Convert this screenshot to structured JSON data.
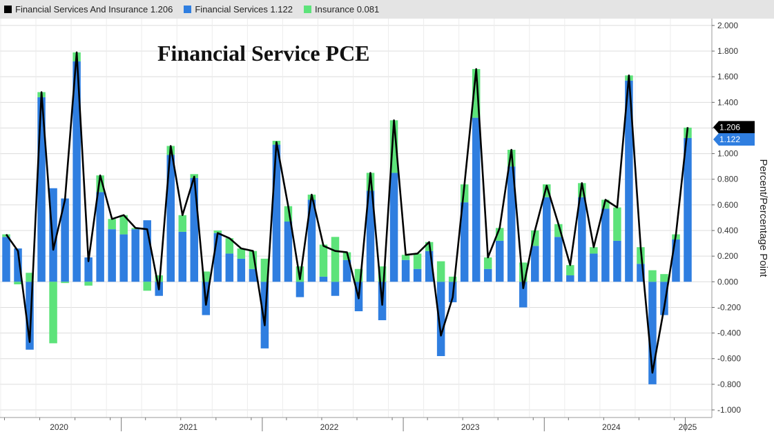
{
  "legend": [
    {
      "label": "Financial Services And Insurance",
      "value": "1.206",
      "color": "#000000"
    },
    {
      "label": "Financial Services",
      "value": "1.122",
      "color": "#2f7ee0"
    },
    {
      "label": "Insurance",
      "value": "0.081",
      "color": "#5de37a"
    }
  ],
  "chart_data": {
    "type": "bar",
    "title": "Financial Service PCE",
    "ylabel": "Percent/Percentage Point",
    "xlabel": "",
    "ylim": [
      -1.0,
      2.0
    ],
    "yticks": [
      2.0,
      1.8,
      1.6,
      1.4,
      1.2,
      1.0,
      0.8,
      0.6,
      0.4,
      0.2,
      0.0,
      -0.2,
      -0.4,
      -0.6,
      -0.8,
      -1.0
    ],
    "ytick_labels": [
      "2.000",
      "1.800",
      "1.600",
      "1.400",
      "1.200",
      "1.000",
      "0.800",
      "0.600",
      "0.400",
      "0.200",
      "0.000",
      "-0.200",
      "-0.400",
      "-0.600",
      "-0.800",
      "-1.000"
    ],
    "year_labels": [
      "2020",
      "2021",
      "2022",
      "2023",
      "2024",
      "2025"
    ],
    "stacked": true,
    "grid": true,
    "legend_position": "top",
    "last_value_callouts": [
      {
        "value": "1.206",
        "color": "#000000"
      },
      {
        "value": "1.122",
        "color": "#2f7ee0"
      }
    ],
    "series": [
      {
        "name": "Financial Services",
        "kind": "bar",
        "color": "#2f7ee0",
        "values": [
          0.35,
          0.26,
          -0.53,
          1.44,
          0.73,
          0.65,
          1.72,
          0.19,
          0.7,
          0.41,
          0.37,
          0.41,
          0.48,
          -0.11,
          0.99,
          0.39,
          0.81,
          -0.26,
          0.38,
          0.22,
          0.18,
          0.1,
          -0.52,
          1.07,
          0.47,
          -0.12,
          0.64,
          0.04,
          -0.11,
          0.17,
          -0.23,
          0.71,
          -0.3,
          0.85,
          0.17,
          0.1,
          0.24,
          -0.58,
          -0.16,
          0.62,
          1.28,
          0.1,
          0.32,
          0.9,
          -0.2,
          0.28,
          0.66,
          0.35,
          0.05,
          0.66,
          0.22,
          0.57,
          0.32,
          1.57,
          0.14,
          -0.8,
          -0.26,
          0.33,
          1.122
        ]
      },
      {
        "name": "Insurance",
        "kind": "bar",
        "color": "#5de37a",
        "values": [
          0.02,
          -0.02,
          0.07,
          0.04,
          -0.48,
          -0.01,
          0.07,
          -0.03,
          0.13,
          0.08,
          0.15,
          0.01,
          -0.07,
          0.05,
          0.07,
          0.13,
          0.03,
          0.08,
          0.02,
          0.12,
          0.08,
          0.14,
          0.18,
          0.03,
          0.12,
          0.12,
          0.04,
          0.25,
          0.35,
          0.06,
          0.1,
          0.14,
          0.12,
          0.41,
          0.04,
          0.12,
          0.07,
          0.16,
          0.04,
          0.14,
          0.38,
          0.09,
          0.1,
          0.13,
          0.15,
          0.12,
          0.1,
          0.1,
          0.08,
          0.11,
          0.05,
          0.07,
          0.26,
          0.04,
          0.13,
          0.09,
          0.06,
          0.04,
          0.081
        ]
      },
      {
        "name": "Financial Services And Insurance",
        "kind": "line",
        "color": "#000000",
        "values": [
          0.37,
          0.24,
          -0.47,
          1.48,
          0.25,
          0.64,
          1.79,
          0.16,
          0.83,
          0.49,
          0.52,
          0.42,
          0.41,
          -0.06,
          1.06,
          0.52,
          0.82,
          -0.18,
          0.38,
          0.34,
          0.26,
          0.24,
          -0.34,
          1.09,
          0.59,
          0.02,
          0.68,
          0.28,
          0.24,
          0.23,
          -0.13,
          0.85,
          -0.18,
          1.26,
          0.21,
          0.22,
          0.31,
          -0.42,
          -0.12,
          0.76,
          1.66,
          0.19,
          0.42,
          1.03,
          -0.05,
          0.4,
          0.75,
          0.45,
          0.13,
          0.77,
          0.27,
          0.64,
          0.58,
          1.61,
          0.27,
          -0.71,
          -0.2,
          0.37,
          1.206
        ]
      }
    ]
  }
}
